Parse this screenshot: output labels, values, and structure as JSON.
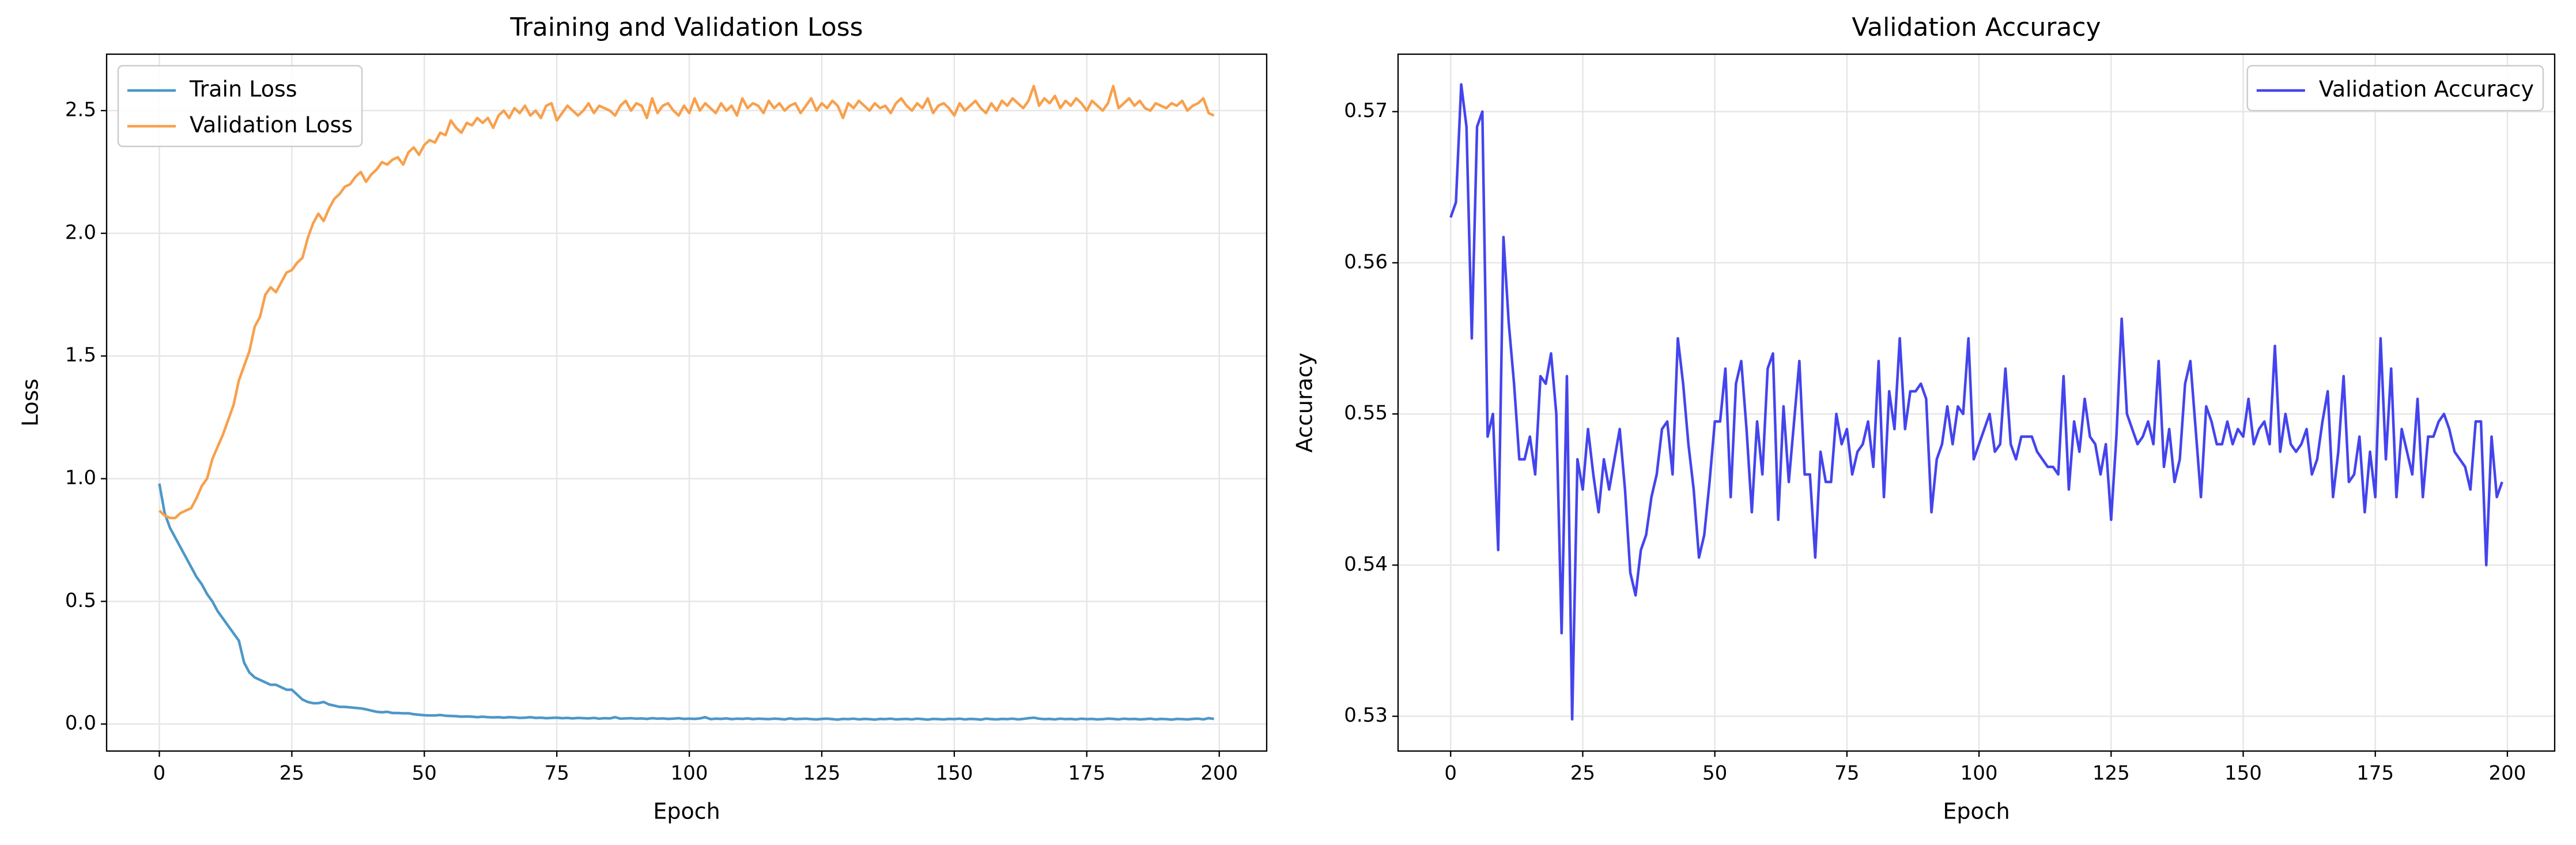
{
  "chart_data": [
    {
      "type": "line",
      "title": "Training and Validation Loss",
      "x_label": "Epoch",
      "y_label": "Loss",
      "x": [
        0,
        1,
        2,
        3,
        4,
        5,
        6,
        7,
        8,
        9,
        10,
        11,
        12,
        13,
        14,
        15,
        16,
        17,
        18,
        19,
        20,
        21,
        22,
        23,
        24,
        25,
        26,
        27,
        28,
        29,
        30,
        31,
        32,
        33,
        34,
        35,
        36,
        37,
        38,
        39,
        40,
        41,
        42,
        43,
        44,
        45,
        46,
        47,
        48,
        49,
        50,
        51,
        52,
        53,
        54,
        55,
        56,
        57,
        58,
        59,
        60,
        61,
        62,
        63,
        64,
        65,
        66,
        67,
        68,
        69,
        70,
        71,
        72,
        73,
        74,
        75,
        76,
        77,
        78,
        79,
        80,
        81,
        82,
        83,
        84,
        85,
        86,
        87,
        88,
        89,
        90,
        91,
        92,
        93,
        94,
        95,
        96,
        97,
        98,
        99,
        100,
        101,
        102,
        103,
        104,
        105,
        106,
        107,
        108,
        109,
        110,
        111,
        112,
        113,
        114,
        115,
        116,
        117,
        118,
        119,
        120,
        121,
        122,
        123,
        124,
        125,
        126,
        127,
        128,
        129,
        130,
        131,
        132,
        133,
        134,
        135,
        136,
        137,
        138,
        139,
        140,
        141,
        142,
        143,
        144,
        145,
        146,
        147,
        148,
        149,
        150,
        151,
        152,
        153,
        154,
        155,
        156,
        157,
        158,
        159,
        160,
        161,
        162,
        163,
        164,
        165,
        166,
        167,
        168,
        169,
        170,
        171,
        172,
        173,
        174,
        175,
        176,
        177,
        178,
        179,
        180,
        181,
        182,
        183,
        184,
        185,
        186,
        187,
        188,
        189,
        190,
        191,
        192,
        193,
        194,
        195,
        196,
        197,
        198,
        199
      ],
      "series": [
        {
          "name": "Train Loss",
          "color": "#4d97c8",
          "values": [
            0.98,
            0.86,
            0.8,
            0.76,
            0.72,
            0.68,
            0.64,
            0.6,
            0.57,
            0.53,
            0.5,
            0.46,
            0.43,
            0.4,
            0.37,
            0.34,
            0.25,
            0.21,
            0.19,
            0.18,
            0.17,
            0.16,
            0.16,
            0.15,
            0.14,
            0.14,
            0.12,
            0.1,
            0.09,
            0.085,
            0.085,
            0.09,
            0.08,
            0.075,
            0.07,
            0.07,
            0.068,
            0.066,
            0.064,
            0.06,
            0.055,
            0.05,
            0.048,
            0.05,
            0.045,
            0.045,
            0.044,
            0.044,
            0.04,
            0.038,
            0.036,
            0.035,
            0.035,
            0.037,
            0.034,
            0.033,
            0.032,
            0.03,
            0.031,
            0.03,
            0.028,
            0.03,
            0.028,
            0.027,
            0.028,
            0.026,
            0.028,
            0.027,
            0.025,
            0.026,
            0.028,
            0.025,
            0.026,
            0.024,
            0.025,
            0.026,
            0.024,
            0.025,
            0.023,
            0.025,
            0.024,
            0.023,
            0.025,
            0.022,
            0.024,
            0.023,
            0.028,
            0.022,
            0.023,
            0.024,
            0.022,
            0.023,
            0.021,
            0.024,
            0.022,
            0.023,
            0.021,
            0.022,
            0.024,
            0.021,
            0.022,
            0.021,
            0.023,
            0.028,
            0.02,
            0.022,
            0.021,
            0.023,
            0.02,
            0.022,
            0.021,
            0.023,
            0.02,
            0.022,
            0.021,
            0.02,
            0.022,
            0.021,
            0.019,
            0.023,
            0.02,
            0.021,
            0.022,
            0.02,
            0.019,
            0.021,
            0.022,
            0.02,
            0.018,
            0.021,
            0.02,
            0.022,
            0.019,
            0.021,
            0.02,
            0.018,
            0.021,
            0.02,
            0.022,
            0.019,
            0.02,
            0.021,
            0.019,
            0.022,
            0.02,
            0.018,
            0.021,
            0.02,
            0.019,
            0.021,
            0.02,
            0.022,
            0.019,
            0.021,
            0.02,
            0.018,
            0.022,
            0.02,
            0.019,
            0.021,
            0.02,
            0.022,
            0.019,
            0.021,
            0.024,
            0.026,
            0.022,
            0.02,
            0.021,
            0.019,
            0.022,
            0.02,
            0.021,
            0.019,
            0.022,
            0.02,
            0.021,
            0.019,
            0.02,
            0.022,
            0.021,
            0.019,
            0.022,
            0.02,
            0.021,
            0.019,
            0.02,
            0.022,
            0.019,
            0.021,
            0.02,
            0.018,
            0.021,
            0.02,
            0.019,
            0.021,
            0.022,
            0.019,
            0.024,
            0.021
          ]
        },
        {
          "name": "Validation Loss",
          "color": "#f8a04c",
          "values": [
            0.87,
            0.85,
            0.84,
            0.84,
            0.86,
            0.87,
            0.88,
            0.92,
            0.97,
            1.0,
            1.08,
            1.13,
            1.18,
            1.24,
            1.3,
            1.4,
            1.46,
            1.52,
            1.62,
            1.66,
            1.75,
            1.78,
            1.76,
            1.8,
            1.84,
            1.85,
            1.88,
            1.9,
            1.98,
            2.04,
            2.08,
            2.05,
            2.1,
            2.14,
            2.16,
            2.19,
            2.2,
            2.23,
            2.25,
            2.21,
            2.24,
            2.26,
            2.29,
            2.28,
            2.3,
            2.31,
            2.28,
            2.33,
            2.35,
            2.32,
            2.36,
            2.38,
            2.37,
            2.41,
            2.4,
            2.46,
            2.43,
            2.41,
            2.45,
            2.44,
            2.47,
            2.45,
            2.47,
            2.43,
            2.48,
            2.5,
            2.47,
            2.51,
            2.49,
            2.52,
            2.48,
            2.5,
            2.47,
            2.52,
            2.53,
            2.46,
            2.49,
            2.52,
            2.5,
            2.48,
            2.5,
            2.53,
            2.49,
            2.52,
            2.51,
            2.5,
            2.48,
            2.52,
            2.54,
            2.5,
            2.53,
            2.52,
            2.47,
            2.55,
            2.49,
            2.52,
            2.53,
            2.5,
            2.48,
            2.52,
            2.49,
            2.55,
            2.5,
            2.53,
            2.51,
            2.49,
            2.53,
            2.5,
            2.52,
            2.48,
            2.55,
            2.51,
            2.53,
            2.52,
            2.49,
            2.54,
            2.51,
            2.53,
            2.5,
            2.52,
            2.53,
            2.49,
            2.52,
            2.55,
            2.5,
            2.53,
            2.51,
            2.54,
            2.52,
            2.47,
            2.53,
            2.51,
            2.54,
            2.52,
            2.5,
            2.53,
            2.51,
            2.52,
            2.49,
            2.53,
            2.55,
            2.52,
            2.5,
            2.53,
            2.51,
            2.55,
            2.49,
            2.52,
            2.53,
            2.51,
            2.48,
            2.53,
            2.5,
            2.52,
            2.54,
            2.51,
            2.49,
            2.53,
            2.5,
            2.54,
            2.52,
            2.55,
            2.53,
            2.51,
            2.54,
            2.6,
            2.52,
            2.55,
            2.53,
            2.56,
            2.51,
            2.54,
            2.52,
            2.55,
            2.53,
            2.5,
            2.54,
            2.52,
            2.5,
            2.53,
            2.6,
            2.51,
            2.53,
            2.55,
            2.52,
            2.54,
            2.51,
            2.5,
            2.53,
            2.52,
            2.51,
            2.53,
            2.52,
            2.54,
            2.5,
            2.52,
            2.53,
            2.55,
            2.49,
            2.48
          ]
        }
      ],
      "xlim": [
        -9.95,
        208.95
      ],
      "ylim": [
        -0.11,
        2.73
      ],
      "xticks": [
        0,
        25,
        50,
        75,
        100,
        125,
        150,
        175,
        200
      ],
      "yticks": [
        {
          "value": 0,
          "label": "0.0"
        },
        0.5,
        {
          "value": 1,
          "label": "1.0"
        },
        1.5,
        {
          "value": 2,
          "label": "2.0"
        },
        2.5
      ],
      "grid": true,
      "legend": "upper left"
    },
    {
      "type": "line",
      "title": "Validation Accuracy",
      "x_label": "Epoch",
      "y_label": "Accuracy",
      "x": [
        0,
        1,
        2,
        3,
        4,
        5,
        6,
        7,
        8,
        9,
        10,
        11,
        12,
        13,
        14,
        15,
        16,
        17,
        18,
        19,
        20,
        21,
        22,
        23,
        24,
        25,
        26,
        27,
        28,
        29,
        30,
        31,
        32,
        33,
        34,
        35,
        36,
        37,
        38,
        39,
        40,
        41,
        42,
        43,
        44,
        45,
        46,
        47,
        48,
        49,
        50,
        51,
        52,
        53,
        54,
        55,
        56,
        57,
        58,
        59,
        60,
        61,
        62,
        63,
        64,
        65,
        66,
        67,
        68,
        69,
        70,
        71,
        72,
        73,
        74,
        75,
        76,
        77,
        78,
        79,
        80,
        81,
        82,
        83,
        84,
        85,
        86,
        87,
        88,
        89,
        90,
        91,
        92,
        93,
        94,
        95,
        96,
        97,
        98,
        99,
        100,
        101,
        102,
        103,
        104,
        105,
        106,
        107,
        108,
        109,
        110,
        111,
        112,
        113,
        114,
        115,
        116,
        117,
        118,
        119,
        120,
        121,
        122,
        123,
        124,
        125,
        126,
        127,
        128,
        129,
        130,
        131,
        132,
        133,
        134,
        135,
        136,
        137,
        138,
        139,
        140,
        141,
        142,
        143,
        144,
        145,
        146,
        147,
        148,
        149,
        150,
        151,
        152,
        153,
        154,
        155,
        156,
        157,
        158,
        159,
        160,
        161,
        162,
        163,
        164,
        165,
        166,
        167,
        168,
        169,
        170,
        171,
        172,
        173,
        174,
        175,
        176,
        177,
        178,
        179,
        180,
        181,
        182,
        183,
        184,
        185,
        186,
        187,
        188,
        189,
        190,
        191,
        192,
        193,
        194,
        195,
        196,
        197,
        198,
        199
      ],
      "series": [
        {
          "name": "Validation Accuracy",
          "color": "#4444ee",
          "values": [
            0.563,
            0.564,
            0.5718,
            0.569,
            0.555,
            0.569,
            0.57,
            0.5485,
            0.55,
            0.541,
            0.5617,
            0.556,
            0.552,
            0.547,
            0.547,
            0.5485,
            0.546,
            0.5525,
            0.552,
            0.554,
            0.55,
            0.5355,
            0.5525,
            0.5298,
            0.547,
            0.545,
            0.549,
            0.546,
            0.5435,
            0.547,
            0.545,
            0.547,
            0.549,
            0.545,
            0.5395,
            0.538,
            0.541,
            0.542,
            0.5445,
            0.546,
            0.549,
            0.5495,
            0.546,
            0.555,
            0.552,
            0.548,
            0.545,
            0.5405,
            0.542,
            0.5455,
            0.5495,
            0.5495,
            0.553,
            0.5445,
            0.552,
            0.5535,
            0.549,
            0.5435,
            0.5495,
            0.546,
            0.553,
            0.554,
            0.543,
            0.5505,
            0.5455,
            0.5495,
            0.5535,
            0.546,
            0.546,
            0.5405,
            0.5475,
            0.5455,
            0.5455,
            0.55,
            0.548,
            0.549,
            0.546,
            0.5475,
            0.548,
            0.5495,
            0.5465,
            0.5535,
            0.5445,
            0.5515,
            0.549,
            0.555,
            0.549,
            0.5515,
            0.5515,
            0.552,
            0.551,
            0.5435,
            0.547,
            0.548,
            0.5505,
            0.548,
            0.5505,
            0.55,
            0.555,
            0.547,
            0.548,
            0.549,
            0.55,
            0.5475,
            0.548,
            0.553,
            0.548,
            0.547,
            0.5485,
            0.5485,
            0.5485,
            0.5475,
            0.547,
            0.5465,
            0.5465,
            0.546,
            0.5525,
            0.545,
            0.5495,
            0.5475,
            0.551,
            0.5485,
            0.548,
            0.546,
            0.548,
            0.543,
            0.5485,
            0.5563,
            0.55,
            0.549,
            0.548,
            0.5485,
            0.5495,
            0.548,
            0.5535,
            0.5465,
            0.549,
            0.5455,
            0.547,
            0.552,
            0.5535,
            0.549,
            0.5445,
            0.5505,
            0.5495,
            0.548,
            0.548,
            0.5495,
            0.548,
            0.549,
            0.5485,
            0.551,
            0.548,
            0.549,
            0.5495,
            0.548,
            0.5545,
            0.5475,
            0.55,
            0.548,
            0.5475,
            0.548,
            0.549,
            0.546,
            0.547,
            0.5495,
            0.5515,
            0.5445,
            0.5475,
            0.5525,
            0.5455,
            0.546,
            0.5485,
            0.5435,
            0.5475,
            0.5445,
            0.555,
            0.547,
            0.553,
            0.5445,
            0.549,
            0.5475,
            0.546,
            0.551,
            0.5445,
            0.5485,
            0.5485,
            0.5495,
            0.55,
            0.549,
            0.5475,
            0.547,
            0.5465,
            0.545,
            0.5495,
            0.5495,
            0.54,
            0.5485,
            0.5445,
            0.5455
          ]
        }
      ],
      "xlim": [
        -9.95,
        208.95
      ],
      "ylim": [
        0.5277,
        0.5738
      ],
      "xticks": [
        0,
        25,
        50,
        75,
        100,
        125,
        150,
        175,
        200
      ],
      "yticks": [
        0.53,
        0.54,
        0.55,
        0.56,
        0.57
      ],
      "grid": true,
      "legend": "upper right"
    }
  ]
}
